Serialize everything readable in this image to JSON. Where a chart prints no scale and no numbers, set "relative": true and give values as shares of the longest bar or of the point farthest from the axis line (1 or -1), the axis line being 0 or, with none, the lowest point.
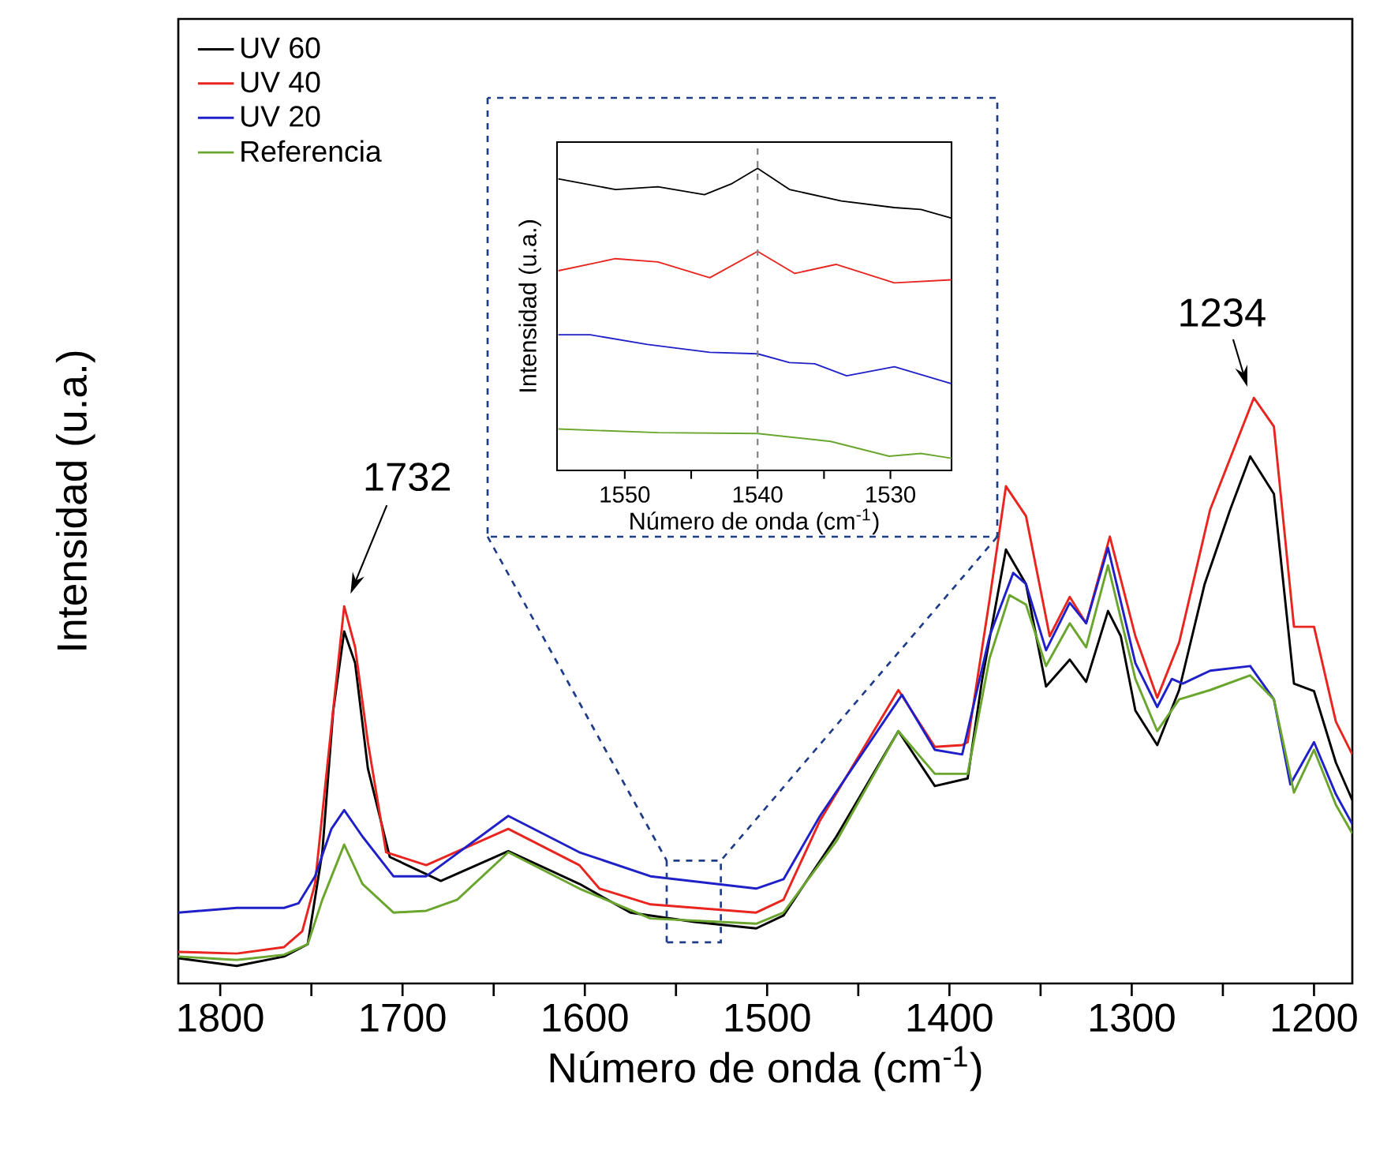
{
  "chart_data": [
    {
      "type": "line",
      "xlabel": "Número de onda (cm$^{-1}$)",
      "ylabel": "Intensidad (u.a.)",
      "relative": true,
      "xlim": [
        1823,
        1179
      ],
      "xticks": [
        1800,
        {
          "value": 1750,
          "label": null
        },
        1700,
        {
          "value": 1650,
          "label": null
        },
        1600,
        {
          "value": 1550,
          "label": null
        },
        1500,
        {
          "value": 1450,
          "label": null
        },
        1400,
        {
          "value": 1350,
          "label": null
        },
        1300,
        {
          "value": 1250,
          "label": null
        },
        1200
      ],
      "legend": "top left",
      "annotations": [
        {
          "text": "1732",
          "x": 1732,
          "y": 0.644
        },
        {
          "text": "1234",
          "x": 1234,
          "y": 1.0
        }
      ],
      "series": [
        {
          "name": "UV 60",
          "color": "#000000",
          "x": [
            1823,
            1791,
            1765,
            1752,
            1744,
            1738,
            1732,
            1726,
            1719,
            1707,
            1679,
            1642,
            1603,
            1575,
            1540,
            1506,
            1491,
            1462,
            1428,
            1408,
            1390,
            1382,
            1369,
            1358,
            1347,
            1334,
            1325,
            1313,
            1306,
            1298,
            1286,
            1274,
            1260,
            1246,
            1235,
            1222,
            1211,
            1200,
            1188,
            1179
          ],
          "values": [
            0.043,
            0.03,
            0.046,
            0.067,
            0.224,
            0.466,
            0.601,
            0.547,
            0.367,
            0.216,
            0.175,
            0.226,
            0.17,
            0.121,
            0.105,
            0.094,
            0.116,
            0.251,
            0.431,
            0.337,
            0.35,
            0.52,
            0.741,
            0.682,
            0.507,
            0.553,
            0.515,
            0.636,
            0.593,
            0.466,
            0.407,
            0.501,
            0.682,
            0.809,
            0.9,
            0.836,
            0.512,
            0.499,
            0.377,
            0.313
          ]
        },
        {
          "name": "UV 40",
          "color": "#e8251f",
          "x": [
            1823,
            1791,
            1765,
            1755,
            1748,
            1739,
            1732,
            1726,
            1719,
            1709,
            1687,
            1642,
            1603,
            1592,
            1564,
            1506,
            1491,
            1471,
            1428,
            1408,
            1393,
            1390,
            1378,
            1369,
            1358,
            1345,
            1334,
            1325,
            1312,
            1298,
            1286,
            1274,
            1257,
            1233,
            1222,
            1211,
            1200,
            1188,
            1179
          ],
          "values": [
            0.054,
            0.051,
            0.062,
            0.089,
            0.17,
            0.439,
            0.644,
            0.574,
            0.412,
            0.224,
            0.202,
            0.264,
            0.202,
            0.162,
            0.135,
            0.121,
            0.143,
            0.278,
            0.501,
            0.404,
            0.407,
            0.412,
            0.655,
            0.849,
            0.798,
            0.593,
            0.66,
            0.615,
            0.763,
            0.593,
            0.488,
            0.582,
            0.809,
            1.0,
            0.951,
            0.609,
            0.609,
            0.447,
            0.391
          ]
        },
        {
          "name": "UV 20",
          "color": "#2020c8",
          "x": [
            1823,
            1791,
            1765,
            1757,
            1748,
            1739,
            1732,
            1722,
            1705,
            1687,
            1642,
            1603,
            1564,
            1506,
            1491,
            1471,
            1426,
            1408,
            1393,
            1378,
            1365,
            1358,
            1347,
            1334,
            1325,
            1313,
            1298,
            1286,
            1278,
            1272,
            1257,
            1235,
            1222,
            1213,
            1200,
            1188,
            1179
          ],
          "values": [
            0.121,
            0.129,
            0.129,
            0.137,
            0.183,
            0.264,
            0.296,
            0.251,
            0.183,
            0.183,
            0.286,
            0.224,
            0.183,
            0.162,
            0.178,
            0.286,
            0.493,
            0.399,
            0.391,
            0.593,
            0.701,
            0.682,
            0.569,
            0.65,
            0.615,
            0.744,
            0.547,
            0.472,
            0.52,
            0.512,
            0.534,
            0.542,
            0.485,
            0.34,
            0.412,
            0.323,
            0.272
          ]
        },
        {
          "name": "Referencia",
          "color": "#6aa62e",
          "x": [
            1823,
            1791,
            1765,
            1752,
            1744,
            1732,
            1722,
            1705,
            1687,
            1670,
            1642,
            1603,
            1564,
            1506,
            1491,
            1462,
            1428,
            1408,
            1390,
            1378,
            1367,
            1358,
            1347,
            1334,
            1325,
            1313,
            1298,
            1286,
            1274,
            1257,
            1235,
            1222,
            1211,
            1200,
            1188,
            1179
          ],
          "values": [
            0.046,
            0.04,
            0.049,
            0.067,
            0.143,
            0.237,
            0.17,
            0.121,
            0.124,
            0.143,
            0.224,
            0.162,
            0.111,
            0.102,
            0.121,
            0.243,
            0.431,
            0.358,
            0.358,
            0.555,
            0.663,
            0.647,
            0.542,
            0.615,
            0.574,
            0.714,
            0.52,
            0.431,
            0.485,
            0.501,
            0.526,
            0.485,
            0.326,
            0.399,
            0.305,
            0.256
          ]
        }
      ]
    },
    {
      "type": "line",
      "xlabel": "Número de onda (cm$^{-1}$)",
      "ylabel": "Intensidad (u.a.)",
      "relative": true,
      "xlim": [
        1555.1,
        1525.4
      ],
      "xticks": [
        1550,
        {
          "value": 1545,
          "label": null
        },
        1540,
        {
          "value": 1535,
          "label": null
        },
        1530
      ],
      "ref_lines": [
        {
          "axis": "x",
          "value": 1540,
          "color": "#7f7f7f",
          "line_style": "dashed"
        }
      ],
      "series": [
        {
          "color": "#000000",
          "x": [
            1555,
            1550.7,
            1547.5,
            1544,
            1542,
            1540,
            1537.6,
            1533.7,
            1529.7,
            1527.7,
            1525.4
          ],
          "values": [
            0.965,
            0.93,
            0.939,
            0.913,
            0.948,
            1.0,
            0.93,
            0.892,
            0.87,
            0.864,
            0.835
          ]
        },
        {
          "color": "#e8251f",
          "x": [
            1555,
            1550.7,
            1547.5,
            1543.6,
            1540,
            1537.2,
            1534.1,
            1529.7,
            1525.4
          ],
          "values": [
            0.661,
            0.701,
            0.69,
            0.638,
            0.725,
            0.652,
            0.682,
            0.621,
            0.631
          ]
        },
        {
          "color": "#2020c8",
          "x": [
            1555,
            1552.6,
            1548.3,
            1543.6,
            1540,
            1537.6,
            1535.7,
            1533.3,
            1529.7,
            1525.4
          ],
          "values": [
            0.449,
            0.449,
            0.417,
            0.391,
            0.386,
            0.357,
            0.353,
            0.313,
            0.343,
            0.287
          ]
        },
        {
          "color": "#6aa62e",
          "x": [
            1555,
            1547.5,
            1540,
            1534.5,
            1530.1,
            1527.7,
            1525.4
          ],
          "values": [
            0.137,
            0.125,
            0.122,
            0.096,
            0.047,
            0.056,
            0.04
          ]
        }
      ]
    }
  ]
}
